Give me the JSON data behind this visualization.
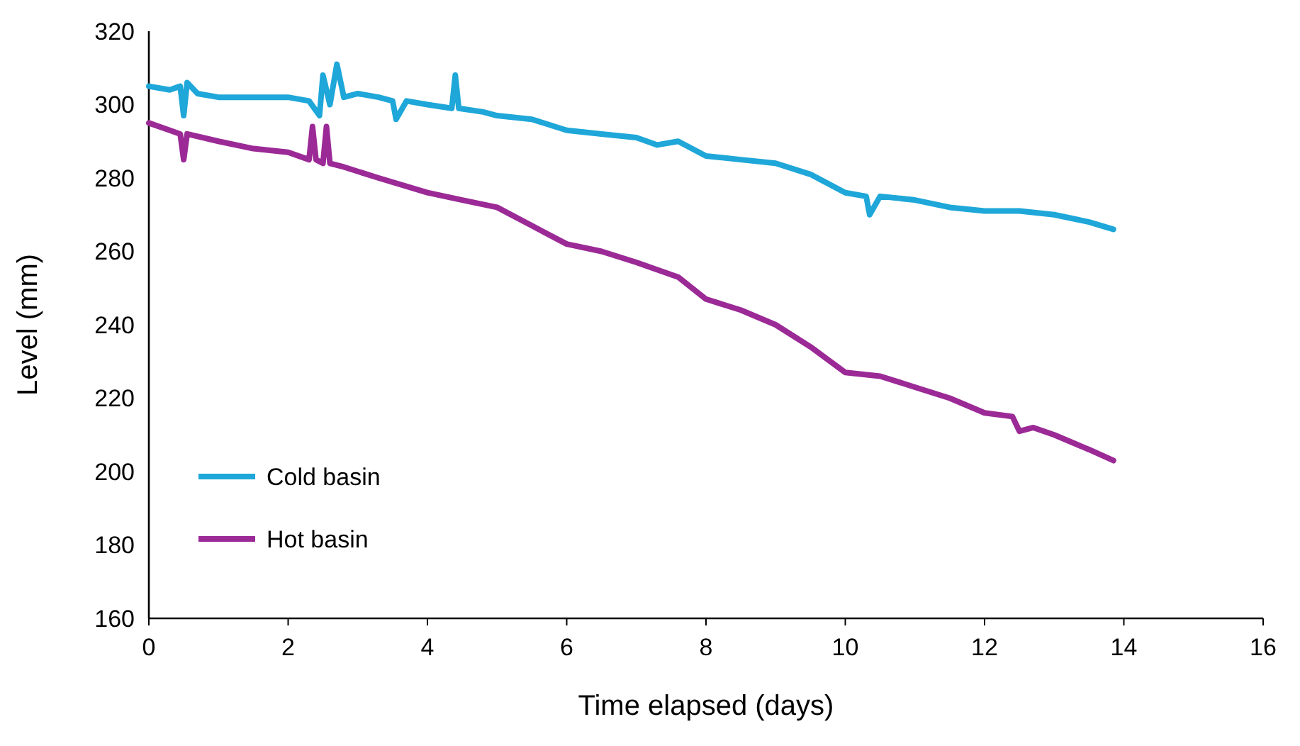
{
  "chart_data": {
    "type": "line",
    "xlabel": "Time elapsed (days)",
    "ylabel": "Level (mm)",
    "xlim": [
      0,
      16
    ],
    "xticks": [
      0,
      2,
      4,
      6,
      8,
      10,
      12,
      14,
      16
    ],
    "ylim": [
      160,
      320
    ],
    "yticks": [
      160,
      180,
      200,
      220,
      240,
      260,
      280,
      300,
      320
    ],
    "grid": false,
    "legend": "bottom left",
    "marker": "none",
    "line_style": "solid",
    "series": [
      {
        "name": "Cold basin",
        "color": "#1ea7d8",
        "x": [
          0,
          0.3,
          0.45,
          0.5,
          0.55,
          0.7,
          1,
          1.5,
          2,
          2.3,
          2.45,
          2.5,
          2.6,
          2.7,
          2.8,
          3,
          3.3,
          3.5,
          3.55,
          3.7,
          4,
          4.35,
          4.4,
          4.45,
          4.8,
          5,
          5.5,
          6,
          6.5,
          7,
          7.3,
          7.6,
          8,
          8.5,
          9,
          9.5,
          10,
          10.3,
          10.35,
          10.5,
          11,
          11.5,
          12,
          12.5,
          13,
          13.5,
          13.85
        ],
        "values": [
          305,
          304,
          305,
          297,
          306,
          303,
          302,
          302,
          302,
          301,
          297,
          308,
          300,
          311,
          302,
          303,
          302,
          301,
          296,
          301,
          300,
          299,
          308,
          299,
          298,
          297,
          296,
          293,
          292,
          291,
          289,
          290,
          286,
          285,
          284,
          281,
          276,
          275,
          270,
          275,
          274,
          272,
          271,
          271,
          270,
          268,
          266
        ]
      },
      {
        "name": "Hot basin",
        "color": "#9b2a96",
        "x": [
          0,
          0.3,
          0.45,
          0.5,
          0.55,
          1,
          1.5,
          2,
          2.3,
          2.35,
          2.4,
          2.5,
          2.55,
          2.6,
          2.8,
          3.3,
          4,
          4.5,
          5,
          5.5,
          6,
          6.5,
          7,
          7.6,
          8,
          8.5,
          9,
          9.5,
          10,
          10.5,
          11,
          11.5,
          12,
          12.4,
          12.5,
          12.7,
          13,
          13.5,
          13.85
        ],
        "values": [
          295,
          293,
          292,
          285,
          292,
          290,
          288,
          287,
          285,
          294,
          285,
          284,
          294,
          284,
          283,
          280,
          276,
          274,
          272,
          267,
          262,
          260,
          257,
          253,
          247,
          244,
          240,
          234,
          227,
          226,
          223,
          220,
          216,
          215,
          211,
          212,
          210,
          206,
          203
        ]
      }
    ]
  }
}
